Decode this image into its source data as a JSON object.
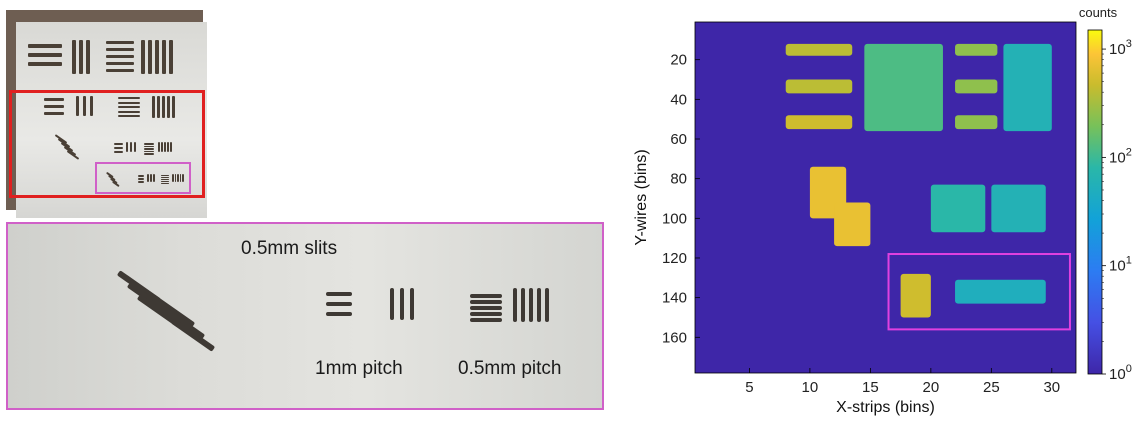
{
  "photo": {
    "zoom_labels": {
      "slits": "0.5mm slits",
      "pitch_1mm": "1mm pitch",
      "pitch_05mm": "0.5mm pitch"
    },
    "colors": {
      "red_box": "#e02020",
      "pink_box": "#d060c8"
    }
  },
  "chart_data": {
    "type": "heatmap",
    "xlabel": "X-strips (bins)",
    "ylabel": "Y-wires (bins)",
    "xlim": [
      0.5,
      32
    ],
    "ylim": [
      1,
      178
    ],
    "xticks": [
      5,
      10,
      15,
      20,
      25,
      30
    ],
    "yticks": [
      20,
      40,
      60,
      80,
      100,
      120,
      140,
      160
    ],
    "colorbar": {
      "label": "counts",
      "scale": "log",
      "range": [
        1,
        1500
      ],
      "ticks": [
        {
          "value": 1,
          "base": "10",
          "exp": "0"
        },
        {
          "value": 10,
          "base": "10",
          "exp": "1"
        },
        {
          "value": 100,
          "base": "10",
          "exp": "2"
        },
        {
          "value": 1000,
          "base": "10",
          "exp": "3"
        }
      ],
      "colormap": "parula"
    },
    "background_counts": 1,
    "highlight_box": {
      "x0": 16.5,
      "x1": 31.5,
      "y0": 118,
      "y1": 156,
      "color": "#e040e0"
    },
    "regions": [
      {
        "x0": 8,
        "x1": 13.5,
        "y0": 12,
        "y1": 18,
        "counts": 400
      },
      {
        "x0": 8,
        "x1": 13.5,
        "y0": 30,
        "y1": 37,
        "counts": 400
      },
      {
        "x0": 8,
        "x1": 13.5,
        "y0": 48,
        "y1": 55,
        "counts": 500
      },
      {
        "x0": 14.5,
        "x1": 21,
        "y0": 12,
        "y1": 56,
        "counts": 120
      },
      {
        "x0": 22,
        "x1": 25.5,
        "y0": 12,
        "y1": 18,
        "counts": 250
      },
      {
        "x0": 22,
        "x1": 25.5,
        "y0": 30,
        "y1": 37,
        "counts": 250
      },
      {
        "x0": 22,
        "x1": 25.5,
        "y0": 48,
        "y1": 55,
        "counts": 250
      },
      {
        "x0": 26,
        "x1": 30,
        "y0": 12,
        "y1": 56,
        "counts": 60
      },
      {
        "x0": 10,
        "x1": 13,
        "y0": 74,
        "y1": 100,
        "counts": 700
      },
      {
        "x0": 12,
        "x1": 15,
        "y0": 92,
        "y1": 114,
        "counts": 700
      },
      {
        "x0": 20,
        "x1": 24.5,
        "y0": 83,
        "y1": 107,
        "counts": 80
      },
      {
        "x0": 25,
        "x1": 29.5,
        "y0": 83,
        "y1": 107,
        "counts": 60
      },
      {
        "x0": 17.5,
        "x1": 20,
        "y0": 128,
        "y1": 150,
        "counts": 500
      },
      {
        "x0": 22,
        "x1": 29.5,
        "y0": 131,
        "y1": 143,
        "counts": 50
      }
    ]
  }
}
